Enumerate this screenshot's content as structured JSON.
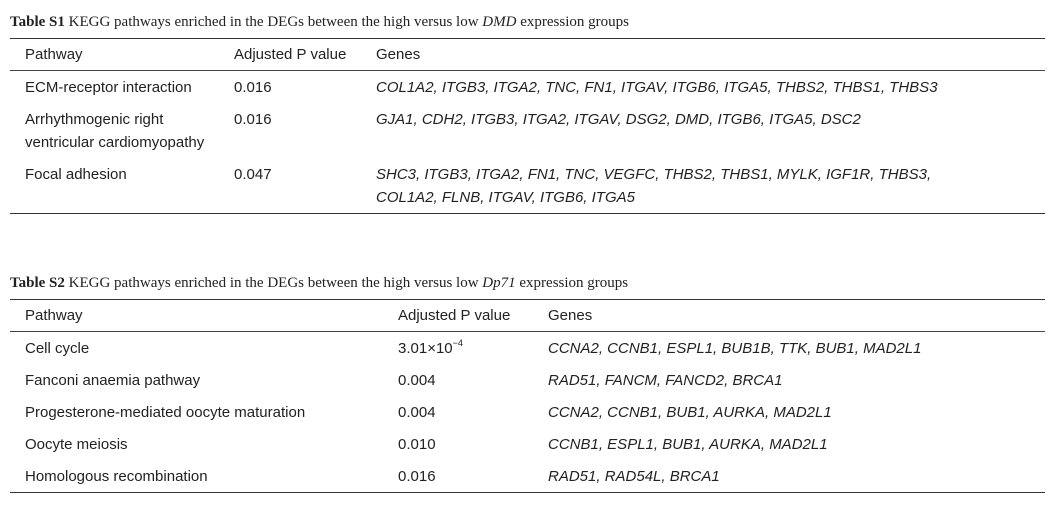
{
  "tables": [
    {
      "title": {
        "label": "Table S1",
        "text": "KEGG pathways enriched in the DEGs between the high versus low",
        "gene": "DMD",
        "suffix": "expression groups"
      },
      "header": [
        "Pathway",
        "Adjusted P value",
        "Genes"
      ],
      "rows": [
        {
          "pathway": "ECM-receptor interaction",
          "p_value": "0.016",
          "genes": "COL1A2, ITGB3, ITGA2, TNC, FN1, ITGAV, ITGB6, ITGA5, THBS2, THBS1, THBS3"
        },
        {
          "pathway": "Arrhythmogenic right ventricular cardiomyopathy",
          "p_value": "0.016",
          "genes": "GJA1, CDH2, ITGB3, ITGA2, ITGAV, DSG2, DMD, ITGB6, ITGA5, DSC2"
        },
        {
          "pathway": "Focal adhesion",
          "p_value": "0.047",
          "genes": "SHC3, ITGB3, ITGA2, FN1, TNC, VEGFC, THBS2, THBS1, MYLK, IGF1R, THBS3, COL1A2, FLNB, ITGAV, ITGB6, ITGA5"
        }
      ]
    },
    {
      "title": {
        "label": "Table S2",
        "text": "KEGG pathways enriched in the DEGs between the high versus low",
        "gene": "Dp71",
        "suffix": "expression groups"
      },
      "header": [
        "Pathway",
        "Adjusted P value",
        "Genes"
      ],
      "rows": [
        {
          "pathway": "Cell cycle",
          "p_value": {
            "base": "3.01×10",
            "exponent": "−4"
          },
          "genes": "CCNA2, CCNB1, ESPL1, BUB1B, TTK, BUB1, MAD2L1"
        },
        {
          "pathway": "Fanconi anaemia pathway",
          "p_value": "0.004",
          "genes": "RAD51, FANCM, FANCD2, BRCA1"
        },
        {
          "pathway": "Progesterone-mediated oocyte maturation",
          "p_value": "0.004",
          "genes": "CCNA2, CCNB1, BUB1, AURKA, MAD2L1"
        },
        {
          "pathway": "Oocyte meiosis",
          "p_value": "0.010",
          "genes": "CCNB1, ESPL1, BUB1, AURKA, MAD2L1"
        },
        {
          "pathway": "Homologous recombination",
          "p_value": "0.016",
          "genes": "RAD51, RAD54L, BRCA1"
        }
      ]
    }
  ]
}
